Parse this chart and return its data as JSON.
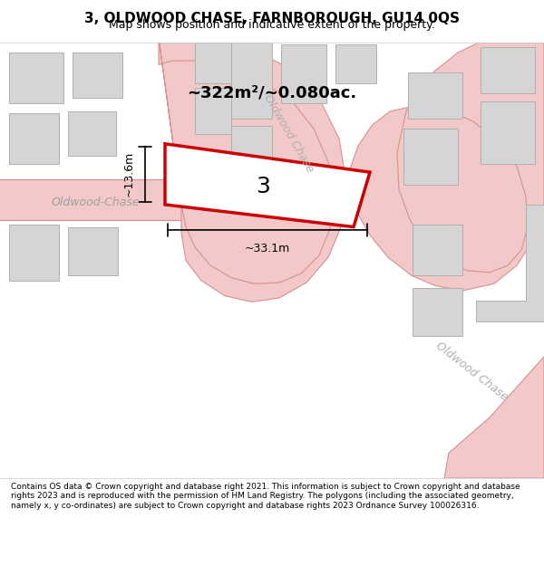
{
  "title": "3, OLDWOOD CHASE, FARNBOROUGH, GU14 0QS",
  "subtitle": "Map shows position and indicative extent of the property.",
  "footer": "Contains OS data © Crown copyright and database right 2021. This information is subject to Crown copyright and database rights 2023 and is reproduced with the permission of HM Land Registry. The polygons (including the associated geometry, namely x, y co-ordinates) are subject to Crown copyright and database rights 2023 Ordnance Survey 100026316.",
  "bg_color": "#f5f5f0",
  "map_bg": "#f5f5f0",
  "road_color": "#f0c8c8",
  "road_border_color": "#e08080",
  "building_color": "#d8d8d8",
  "building_border": "#c0c0c0",
  "highlight_color": "#cc0000",
  "highlight_fill": "#ffffff",
  "area_text": "~322m²/~0.080ac.",
  "property_label": "3",
  "width_label": "~33.1m",
  "height_label": "~13.6m",
  "street_label_1": "Oldwood-Chase",
  "street_label_2": "Oldwood Chase",
  "street_label_3": "Oldwood Chase",
  "map_xlim": [
    0,
    1.0
  ],
  "map_ylim": [
    0,
    1.0
  ]
}
